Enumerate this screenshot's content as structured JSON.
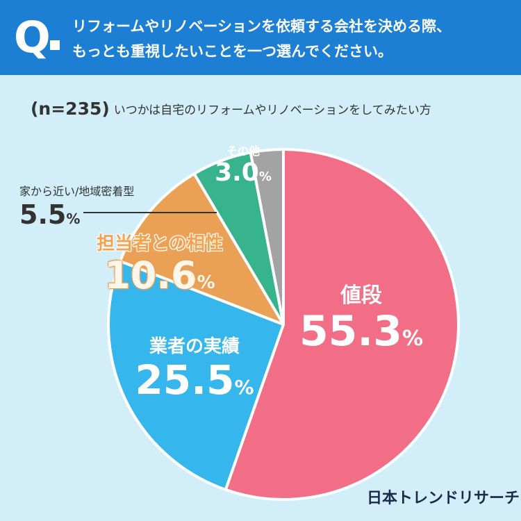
{
  "question": {
    "mark": "Q",
    "line1": "リフォームやリノベーションを依頼する会社を決める際、",
    "line2": "もっとも重視したいことを一つ選んでください。"
  },
  "sample": {
    "n": "(n=235)",
    "description": "いつかは自宅のリフォームやリノベーションをしてみたい方"
  },
  "chart_data": {
    "type": "pie",
    "categories": [
      "値段",
      "業者の実績",
      "担当者との相性",
      "家から近い/地域密着型",
      "その他"
    ],
    "values": [
      55.3,
      25.5,
      10.6,
      5.5,
      3.0
    ],
    "value_labels": [
      "55.3",
      "25.5",
      "10.6",
      "5.5",
      "3.0"
    ],
    "unit": "%",
    "colors": [
      "#f26e86",
      "#35b6ec",
      "#eaa055",
      "#37b48c",
      "#a3a3a3"
    ],
    "start": "12 o'clock",
    "direction": "clockwise",
    "legend": "none"
  },
  "brand": "日本トレンドリサーチ"
}
